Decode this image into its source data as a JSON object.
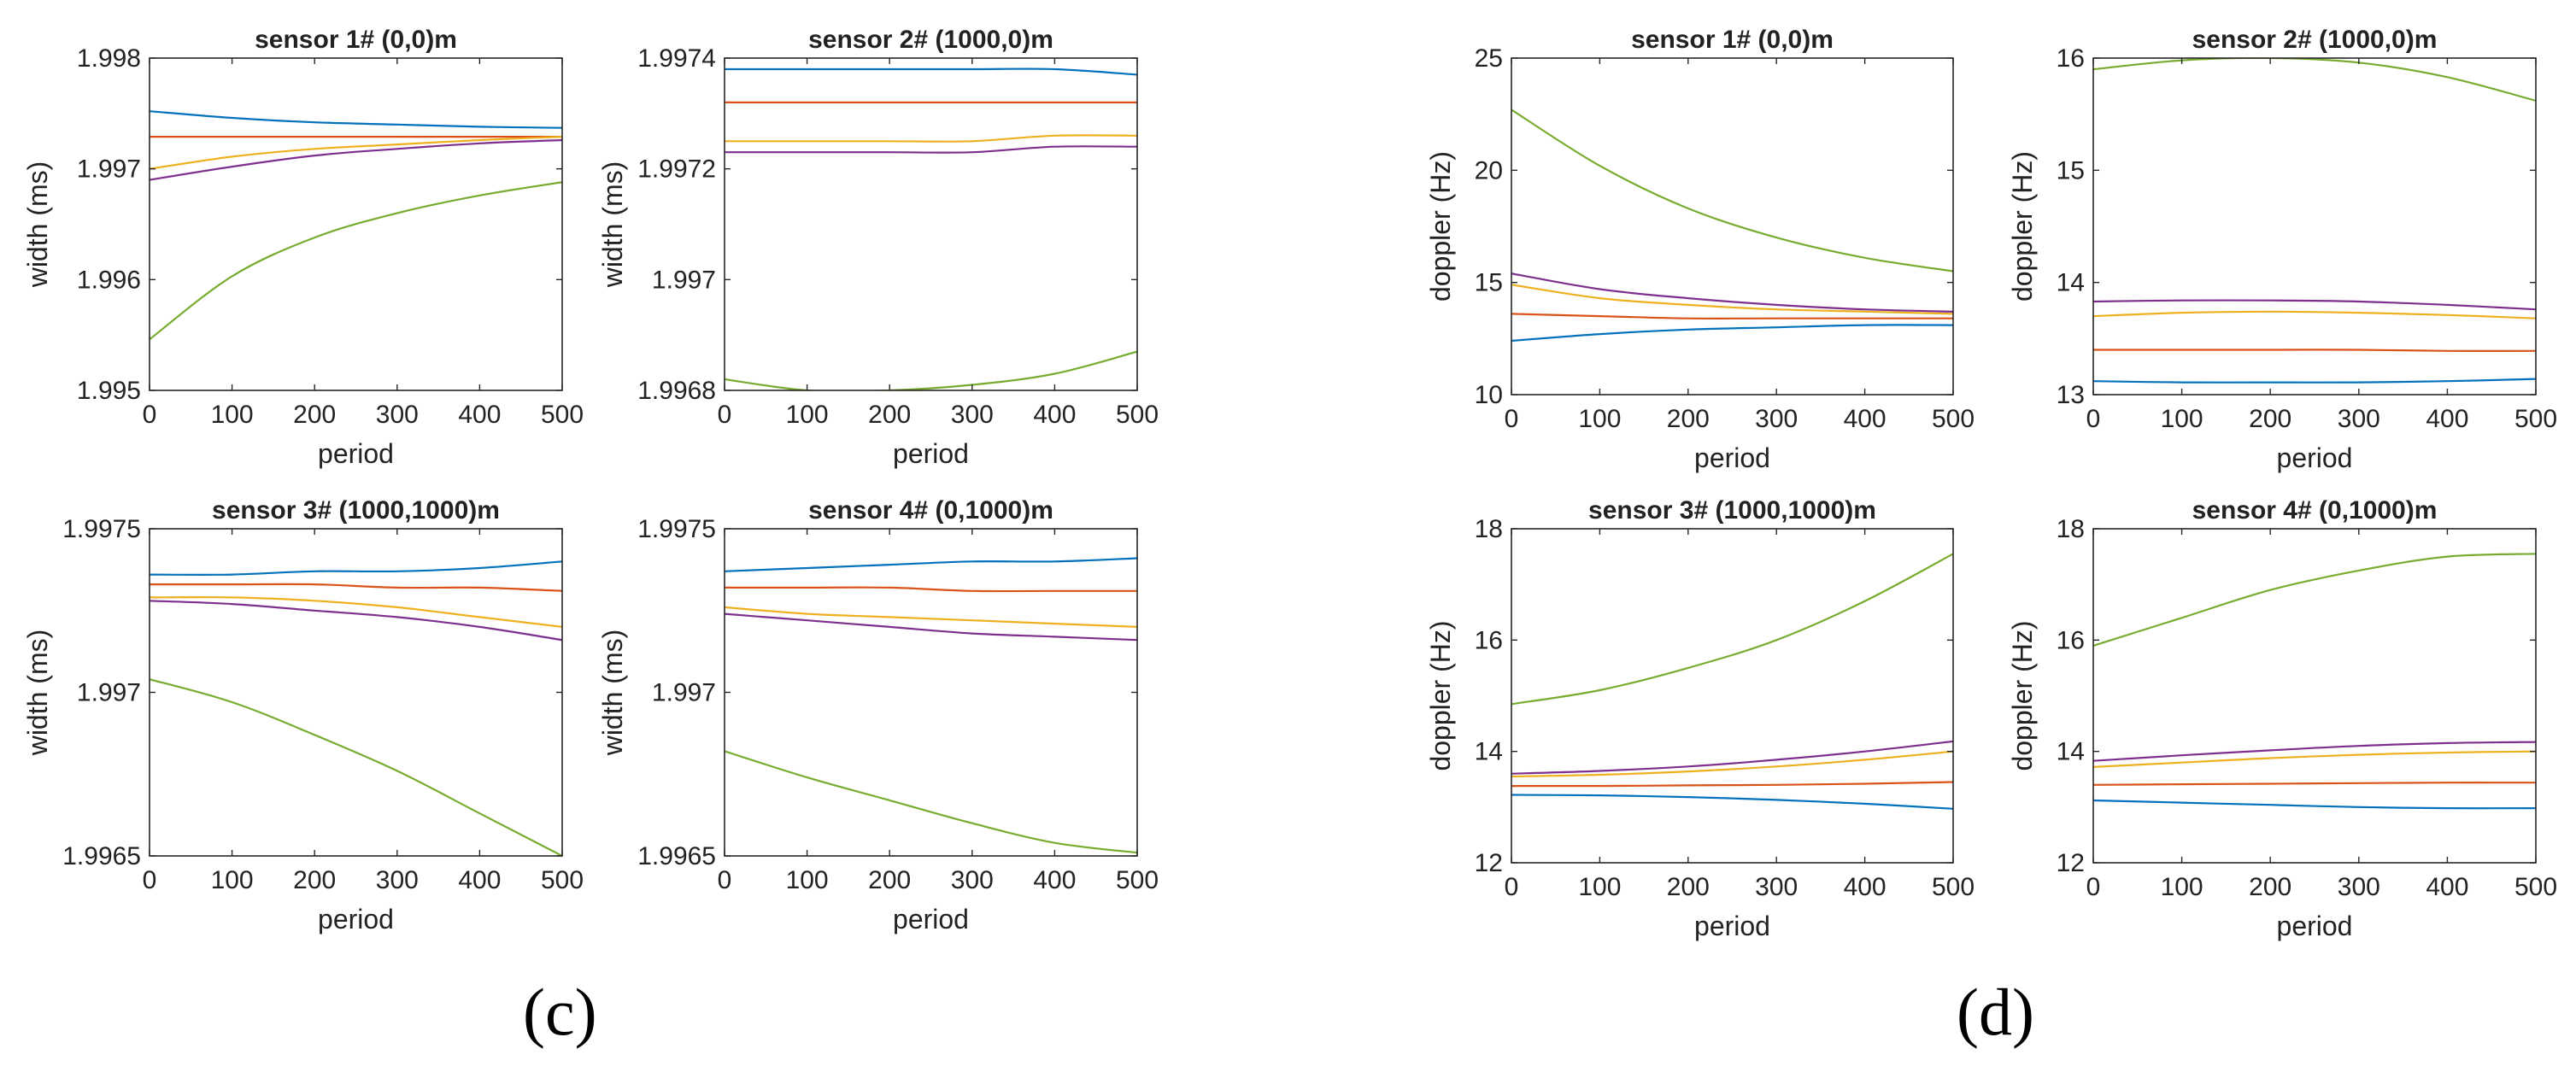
{
  "panel_labels": {
    "c": "(c)",
    "d": "(d)"
  },
  "colors": {
    "blue": "#0072BD",
    "red": "#D95319",
    "yellow": "#EDB120",
    "purple": "#7E2F8E",
    "green": "#77AC30"
  },
  "chart_data": [
    {
      "type": "line",
      "panel": "c",
      "title": "sensor 1# (0,0)m",
      "xlabel": "period",
      "ylabel": "width (ms)",
      "xlim": [
        0,
        500
      ],
      "ylim": [
        1.995,
        1.998
      ],
      "xticks": [
        "0",
        "100",
        "200",
        "300",
        "400",
        "500"
      ],
      "yticks": [
        "1.995",
        "1.996",
        "1.997",
        "1.998"
      ],
      "x": [
        0,
        100,
        200,
        300,
        400,
        500
      ],
      "series": [
        {
          "name": "blue",
          "color": "#0072BD",
          "values": [
            1.99752,
            1.99746,
            1.99742,
            1.9974,
            1.99738,
            1.99737
          ]
        },
        {
          "name": "red",
          "color": "#D95319",
          "values": [
            1.99729,
            1.99729,
            1.99729,
            1.99729,
            1.99729,
            1.99729
          ]
        },
        {
          "name": "yellow",
          "color": "#EDB120",
          "values": [
            1.997,
            1.99711,
            1.99718,
            1.99722,
            1.99726,
            1.99729
          ]
        },
        {
          "name": "purple",
          "color": "#7E2F8E",
          "values": [
            1.9969,
            1.99702,
            1.99712,
            1.99718,
            1.99723,
            1.99726
          ]
        },
        {
          "name": "green",
          "color": "#77AC30",
          "values": [
            1.99546,
            1.99603,
            1.99638,
            1.9966,
            1.99676,
            1.99688
          ]
        }
      ]
    },
    {
      "type": "line",
      "panel": "c",
      "title": "sensor 2# (1000,0)m",
      "xlabel": "period",
      "ylabel": "width (ms)",
      "xlim": [
        0,
        500
      ],
      "ylim": [
        1.9968,
        1.9974
      ],
      "xticks": [
        "0",
        "100",
        "200",
        "300",
        "400",
        "500"
      ],
      "yticks": [
        "1.9968",
        "1.997",
        "1.9972",
        "1.9974"
      ],
      "x": [
        0,
        100,
        200,
        300,
        400,
        500
      ],
      "series": [
        {
          "name": "blue",
          "color": "#0072BD",
          "values": [
            1.99738,
            1.99738,
            1.99738,
            1.99738,
            1.99738,
            1.99737
          ]
        },
        {
          "name": "red",
          "color": "#D95319",
          "values": [
            1.99732,
            1.99732,
            1.99732,
            1.99732,
            1.99732,
            1.99732
          ]
        },
        {
          "name": "yellow",
          "color": "#EDB120",
          "values": [
            1.99725,
            1.99725,
            1.99725,
            1.99725,
            1.99726,
            1.99726
          ]
        },
        {
          "name": "purple",
          "color": "#7E2F8E",
          "values": [
            1.99723,
            1.99723,
            1.99723,
            1.99723,
            1.99724,
            1.99724
          ]
        },
        {
          "name": "green",
          "color": "#77AC30",
          "values": [
            1.99682,
            1.9968,
            1.9968,
            1.99681,
            1.99683,
            1.99687
          ]
        }
      ]
    },
    {
      "type": "line",
      "panel": "c",
      "title": "sensor 3# (1000,1000)m",
      "xlabel": "period",
      "ylabel": "width (ms)",
      "xlim": [
        0,
        500
      ],
      "ylim": [
        1.9965,
        1.9975
      ],
      "xticks": [
        "0",
        "100",
        "200",
        "300",
        "400",
        "500"
      ],
      "yticks": [
        "1.9965",
        "1.997",
        "1.9975"
      ],
      "x": [
        0,
        100,
        200,
        300,
        400,
        500
      ],
      "series": [
        {
          "name": "blue",
          "color": "#0072BD",
          "values": [
            1.99736,
            1.99736,
            1.99737,
            1.99737,
            1.99738,
            1.9974
          ]
        },
        {
          "name": "red",
          "color": "#D95319",
          "values": [
            1.99733,
            1.99733,
            1.99733,
            1.99732,
            1.99732,
            1.99731
          ]
        },
        {
          "name": "yellow",
          "color": "#EDB120",
          "values": [
            1.99729,
            1.99729,
            1.99728,
            1.99726,
            1.99723,
            1.9972
          ]
        },
        {
          "name": "purple",
          "color": "#7E2F8E",
          "values": [
            1.99728,
            1.99727,
            1.99725,
            1.99723,
            1.9972,
            1.99716
          ]
        },
        {
          "name": "green",
          "color": "#77AC30",
          "values": [
            1.99704,
            1.99697,
            1.99687,
            1.99676,
            1.99663,
            1.9965
          ]
        }
      ]
    },
    {
      "type": "line",
      "panel": "c",
      "title": "sensor 4# (0,1000)m",
      "xlabel": "period",
      "ylabel": "width (ms)",
      "xlim": [
        0,
        500
      ],
      "ylim": [
        1.9965,
        1.9975
      ],
      "xticks": [
        "0",
        "100",
        "200",
        "300",
        "400",
        "500"
      ],
      "yticks": [
        "1.9965",
        "1.997",
        "1.9975"
      ],
      "x": [
        0,
        100,
        200,
        300,
        400,
        500
      ],
      "series": [
        {
          "name": "blue",
          "color": "#0072BD",
          "values": [
            1.99737,
            1.99738,
            1.99739,
            1.9974,
            1.9974,
            1.99741
          ]
        },
        {
          "name": "red",
          "color": "#D95319",
          "values": [
            1.99732,
            1.99732,
            1.99732,
            1.99731,
            1.99731,
            1.99731
          ]
        },
        {
          "name": "yellow",
          "color": "#EDB120",
          "values": [
            1.99726,
            1.99724,
            1.99723,
            1.99722,
            1.99721,
            1.9972
          ]
        },
        {
          "name": "purple",
          "color": "#7E2F8E",
          "values": [
            1.99724,
            1.99722,
            1.9972,
            1.99718,
            1.99717,
            1.99716
          ]
        },
        {
          "name": "green",
          "color": "#77AC30",
          "values": [
            1.99682,
            1.99674,
            1.99667,
            1.9966,
            1.99654,
            1.99651
          ]
        }
      ]
    },
    {
      "type": "line",
      "panel": "d",
      "title": "sensor 1# (0,0)m",
      "xlabel": "period",
      "ylabel": "doppler (Hz)",
      "xlim": [
        0,
        500
      ],
      "ylim": [
        10,
        25
      ],
      "xticks": [
        "0",
        "100",
        "200",
        "300",
        "400",
        "500"
      ],
      "yticks": [
        "10",
        "15",
        "20",
        "25"
      ],
      "x": [
        0,
        100,
        200,
        300,
        400,
        500
      ],
      "series": [
        {
          "name": "blue",
          "color": "#0072BD",
          "values": [
            12.4,
            12.7,
            12.9,
            13.0,
            13.1,
            13.1
          ]
        },
        {
          "name": "red",
          "color": "#D95319",
          "values": [
            13.6,
            13.5,
            13.4,
            13.4,
            13.4,
            13.4
          ]
        },
        {
          "name": "yellow",
          "color": "#EDB120",
          "values": [
            14.9,
            14.3,
            14.0,
            13.8,
            13.7,
            13.6
          ]
        },
        {
          "name": "purple",
          "color": "#7E2F8E",
          "values": [
            15.4,
            14.7,
            14.3,
            14.0,
            13.8,
            13.7
          ]
        },
        {
          "name": "green",
          "color": "#77AC30",
          "values": [
            22.7,
            20.2,
            18.3,
            17.0,
            16.1,
            15.5
          ]
        }
      ]
    },
    {
      "type": "line",
      "panel": "d",
      "title": "sensor 2# (1000,0)m",
      "xlabel": "period",
      "ylabel": "doppler (Hz)",
      "xlim": [
        0,
        500
      ],
      "ylim": [
        13,
        16
      ],
      "xticks": [
        "0",
        "100",
        "200",
        "300",
        "400",
        "500"
      ],
      "yticks": [
        "13",
        "14",
        "15",
        "16"
      ],
      "x": [
        0,
        100,
        200,
        300,
        400,
        500
      ],
      "series": [
        {
          "name": "blue",
          "color": "#0072BD",
          "values": [
            13.12,
            13.11,
            13.11,
            13.11,
            13.12,
            13.14
          ]
        },
        {
          "name": "red",
          "color": "#D95319",
          "values": [
            13.4,
            13.4,
            13.4,
            13.4,
            13.39,
            13.39
          ]
        },
        {
          "name": "yellow",
          "color": "#EDB120",
          "values": [
            13.7,
            13.73,
            13.74,
            13.73,
            13.71,
            13.68
          ]
        },
        {
          "name": "purple",
          "color": "#7E2F8E",
          "values": [
            13.83,
            13.84,
            13.84,
            13.83,
            13.8,
            13.76
          ]
        },
        {
          "name": "green",
          "color": "#77AC30",
          "values": [
            15.9,
            15.98,
            16.0,
            15.96,
            15.83,
            15.62
          ]
        }
      ]
    },
    {
      "type": "line",
      "panel": "d",
      "title": "sensor 3# (1000,1000)m",
      "xlabel": "period",
      "ylabel": "doppler (Hz)",
      "xlim": [
        0,
        500
      ],
      "ylim": [
        12,
        18
      ],
      "xticks": [
        "0",
        "100",
        "200",
        "300",
        "400",
        "500"
      ],
      "yticks": [
        "12",
        "14",
        "16",
        "18"
      ],
      "x": [
        0,
        100,
        200,
        300,
        400,
        500
      ],
      "series": [
        {
          "name": "blue",
          "color": "#0072BD",
          "values": [
            13.22,
            13.21,
            13.18,
            13.13,
            13.06,
            12.97
          ]
        },
        {
          "name": "red",
          "color": "#D95319",
          "values": [
            13.38,
            13.38,
            13.39,
            13.4,
            13.42,
            13.45
          ]
        },
        {
          "name": "yellow",
          "color": "#EDB120",
          "values": [
            13.55,
            13.58,
            13.64,
            13.73,
            13.85,
            14.0
          ]
        },
        {
          "name": "purple",
          "color": "#7E2F8E",
          "values": [
            13.6,
            13.65,
            13.73,
            13.85,
            14.0,
            14.18
          ]
        },
        {
          "name": "green",
          "color": "#77AC30",
          "values": [
            14.85,
            15.1,
            15.5,
            16.0,
            16.7,
            17.55
          ]
        }
      ]
    },
    {
      "type": "line",
      "panel": "d",
      "title": "sensor 4# (0,1000)m",
      "xlabel": "period",
      "ylabel": "doppler (Hz)",
      "xlim": [
        0,
        500
      ],
      "ylim": [
        12,
        18
      ],
      "xticks": [
        "0",
        "100",
        "200",
        "300",
        "400",
        "500"
      ],
      "yticks": [
        "12",
        "14",
        "16",
        "18"
      ],
      "x": [
        0,
        100,
        200,
        300,
        400,
        500
      ],
      "series": [
        {
          "name": "blue",
          "color": "#0072BD",
          "values": [
            13.12,
            13.08,
            13.04,
            13.0,
            12.98,
            12.98
          ]
        },
        {
          "name": "red",
          "color": "#D95319",
          "values": [
            13.4,
            13.41,
            13.42,
            13.43,
            13.44,
            13.44
          ]
        },
        {
          "name": "yellow",
          "color": "#EDB120",
          "values": [
            13.72,
            13.8,
            13.88,
            13.94,
            13.98,
            14.0
          ]
        },
        {
          "name": "purple",
          "color": "#7E2F8E",
          "values": [
            13.83,
            13.93,
            14.02,
            14.1,
            14.15,
            14.17
          ]
        },
        {
          "name": "green",
          "color": "#77AC30",
          "values": [
            15.9,
            16.4,
            16.9,
            17.25,
            17.5,
            17.55
          ]
        }
      ]
    }
  ]
}
